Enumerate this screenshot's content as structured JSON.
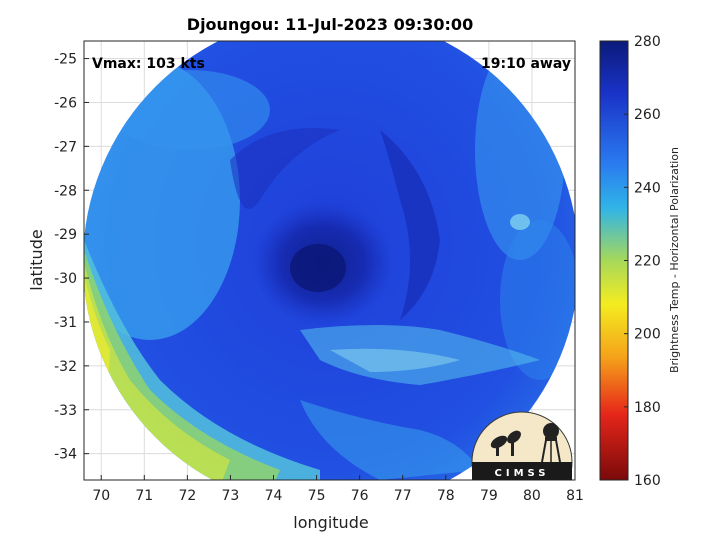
{
  "chart_data": {
    "type": "heatmap",
    "title": "Djoungou: 11-Jul-2023 09:30:00",
    "xlabel": "longitude",
    "ylabel": "latitude",
    "xlim": [
      69.6,
      81.0
    ],
    "ylim": [
      -34.6,
      -24.6
    ],
    "xticks": [
      70,
      71,
      72,
      73,
      74,
      75,
      76,
      77,
      78,
      79,
      80,
      81
    ],
    "yticks": [
      -25,
      -26,
      -27,
      -28,
      -29,
      -30,
      -31,
      -32,
      -33,
      -34
    ],
    "grid": true,
    "annotations": {
      "vmax": "Vmax: 103 kts",
      "away": "19:10 away"
    },
    "storm_center": {
      "lon": 75.0,
      "lat": -29.8
    },
    "colorbar": {
      "label": "Brightness Temp - Horizontal Polarization",
      "range": [
        160,
        280
      ],
      "ticks": [
        280,
        260,
        240,
        220,
        200,
        180,
        160
      ]
    },
    "logo_text": "CIMSS"
  }
}
